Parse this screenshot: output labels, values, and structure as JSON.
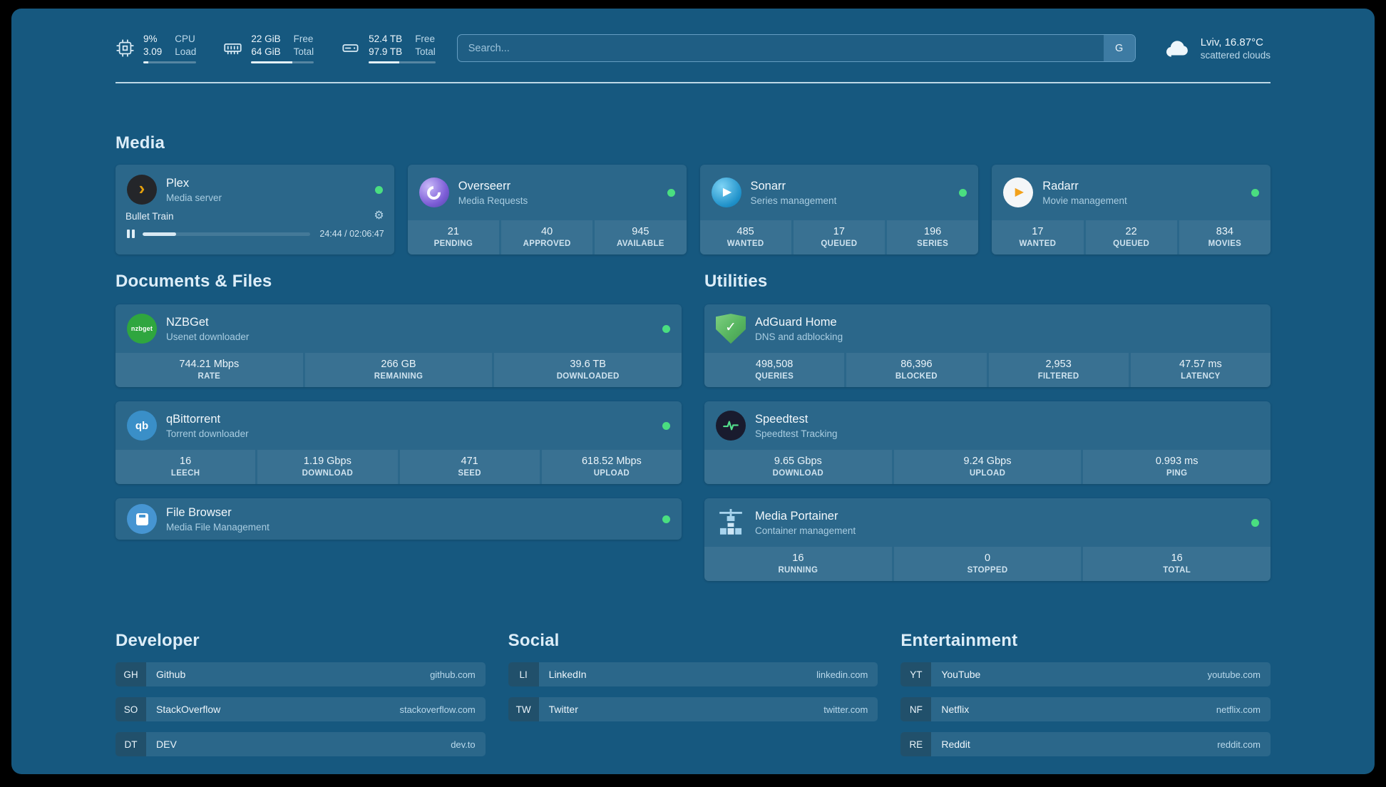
{
  "topbar": {
    "cpu": {
      "value_top": "9%",
      "value_bottom": "3.09",
      "label_top": "CPU",
      "label_bottom": "Load",
      "percent": 9
    },
    "memory": {
      "value_top": "22 GiB",
      "value_bottom": "64 GiB",
      "label_top": "Free",
      "label_bottom": "Total",
      "percent": 66
    },
    "disk": {
      "value_top": "52.4 TB",
      "value_bottom": "97.9 TB",
      "label_top": "Free",
      "label_bottom": "Total",
      "percent": 46
    },
    "search": {
      "placeholder": "Search...",
      "provider_label": "G"
    },
    "weather": {
      "location": "Lviv, 16.87°C",
      "condition": "scattered clouds"
    }
  },
  "sections": {
    "media": "Media",
    "documents": "Documents & Files",
    "utilities": "Utilities",
    "developer": "Developer",
    "social": "Social",
    "entertainment": "Entertainment"
  },
  "icons": {
    "gear": "⚙",
    "play": "▶",
    "plex_chevron": "›",
    "check": "✓"
  },
  "services": {
    "plex": {
      "name": "Plex",
      "subtitle": "Media server",
      "now_playing": "Bullet Train",
      "time_display": "24:44 / 02:06:47",
      "progress_percent": 20
    },
    "overseerr": {
      "name": "Overseerr",
      "subtitle": "Media Requests",
      "stats": [
        {
          "value": "21",
          "label": "PENDING"
        },
        {
          "value": "40",
          "label": "APPROVED"
        },
        {
          "value": "945",
          "label": "AVAILABLE"
        }
      ]
    },
    "sonarr": {
      "name": "Sonarr",
      "subtitle": "Series management",
      "stats": [
        {
          "value": "485",
          "label": "WANTED"
        },
        {
          "value": "17",
          "label": "QUEUED"
        },
        {
          "value": "196",
          "label": "SERIES"
        }
      ]
    },
    "radarr": {
      "name": "Radarr",
      "subtitle": "Movie management",
      "stats": [
        {
          "value": "17",
          "label": "WANTED"
        },
        {
          "value": "22",
          "label": "QUEUED"
        },
        {
          "value": "834",
          "label": "MOVIES"
        }
      ]
    },
    "nzbget": {
      "name": "NZBGet",
      "subtitle": "Usenet downloader",
      "icon_text": "nzbget",
      "stats": [
        {
          "value": "744.21 Mbps",
          "label": "RATE"
        },
        {
          "value": "266 GB",
          "label": "REMAINING"
        },
        {
          "value": "39.6 TB",
          "label": "DOWNLOADED"
        }
      ]
    },
    "qbittorrent": {
      "name": "qBittorrent",
      "subtitle": "Torrent downloader",
      "icon_text": "qb",
      "stats": [
        {
          "value": "16",
          "label": "LEECH"
        },
        {
          "value": "1.19 Gbps",
          "label": "DOWNLOAD"
        },
        {
          "value": "471",
          "label": "SEED"
        },
        {
          "value": "618.52 Mbps",
          "label": "UPLOAD"
        }
      ]
    },
    "filebrowser": {
      "name": "File Browser",
      "subtitle": "Media File Management"
    },
    "adguard": {
      "name": "AdGuard Home",
      "subtitle": "DNS and adblocking",
      "stats": [
        {
          "value": "498,508",
          "label": "QUERIES"
        },
        {
          "value": "86,396",
          "label": "BLOCKED"
        },
        {
          "value": "2,953",
          "label": "FILTERED"
        },
        {
          "value": "47.57 ms",
          "label": "LATENCY"
        }
      ]
    },
    "speedtest": {
      "name": "Speedtest",
      "subtitle": "Speedtest Tracking",
      "stats": [
        {
          "value": "9.65 Gbps",
          "label": "DOWNLOAD"
        },
        {
          "value": "9.24 Gbps",
          "label": "UPLOAD"
        },
        {
          "value": "0.993 ms",
          "label": "PING"
        }
      ]
    },
    "portainer": {
      "name": "Media Portainer",
      "subtitle": "Container management",
      "stats": [
        {
          "value": "16",
          "label": "RUNNING"
        },
        {
          "value": "0",
          "label": "STOPPED"
        },
        {
          "value": "16",
          "label": "TOTAL"
        }
      ]
    }
  },
  "bookmarks": {
    "developer": [
      {
        "abbr": "GH",
        "name": "Github",
        "url": "github.com"
      },
      {
        "abbr": "SO",
        "name": "StackOverflow",
        "url": "stackoverflow.com"
      },
      {
        "abbr": "DT",
        "name": "DEV",
        "url": "dev.to"
      }
    ],
    "social": [
      {
        "abbr": "LI",
        "name": "LinkedIn",
        "url": "linkedin.com"
      },
      {
        "abbr": "TW",
        "name": "Twitter",
        "url": "twitter.com"
      }
    ],
    "entertainment": [
      {
        "abbr": "YT",
        "name": "YouTube",
        "url": "youtube.com"
      },
      {
        "abbr": "NF",
        "name": "Netflix",
        "url": "netflix.com"
      },
      {
        "abbr": "RE",
        "name": "Reddit",
        "url": "reddit.com"
      }
    ]
  },
  "colors": {
    "background": "#16587f",
    "status_ok": "#4ade80",
    "plex_accent": "#e5a00d"
  }
}
